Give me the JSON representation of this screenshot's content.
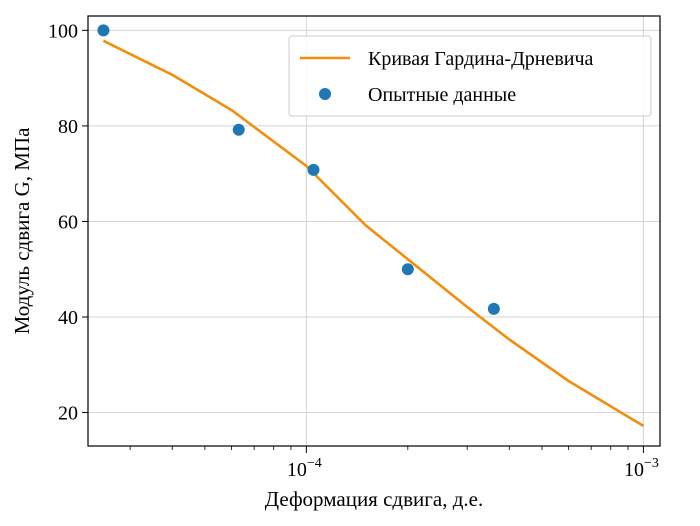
{
  "chart_data": {
    "type": "line",
    "xscale": "log",
    "xlim": [
      2.25e-05,
      0.00112
    ],
    "ylim": [
      13,
      103
    ],
    "grid": true,
    "xlabel": "Деформация сдвига, д.е.",
    "ylabel": "Модуль сдвига G, МПа",
    "xticks": [
      {
        "value": 0.0001,
        "base": "10",
        "exp": "−4"
      },
      {
        "value": 0.001,
        "base": "10",
        "exp": "−3"
      }
    ],
    "yticks": [
      20,
      40,
      60,
      80,
      100
    ],
    "legend": {
      "position": "top-right"
    },
    "series": [
      {
        "name": "Кривая Гардина-Дрневича",
        "kind": "line",
        "color": "#f28e0c",
        "x": [
          2.5e-05,
          4e-05,
          6e-05,
          0.0001,
          0.00015,
          0.0002,
          0.0003,
          0.0004,
          0.0006,
          0.001
        ],
        "y": [
          97.8,
          90.7,
          83.3,
          71.6,
          59.2,
          52.1,
          42.1,
          35.3,
          26.6,
          17.2
        ]
      },
      {
        "name": "Опытные данные",
        "kind": "scatter",
        "color": "#1f77b4",
        "x": [
          2.5e-05,
          6.3e-05,
          0.000105,
          0.0002,
          0.00036
        ],
        "y": [
          100,
          79.2,
          70.8,
          50,
          41.7
        ]
      }
    ]
  }
}
